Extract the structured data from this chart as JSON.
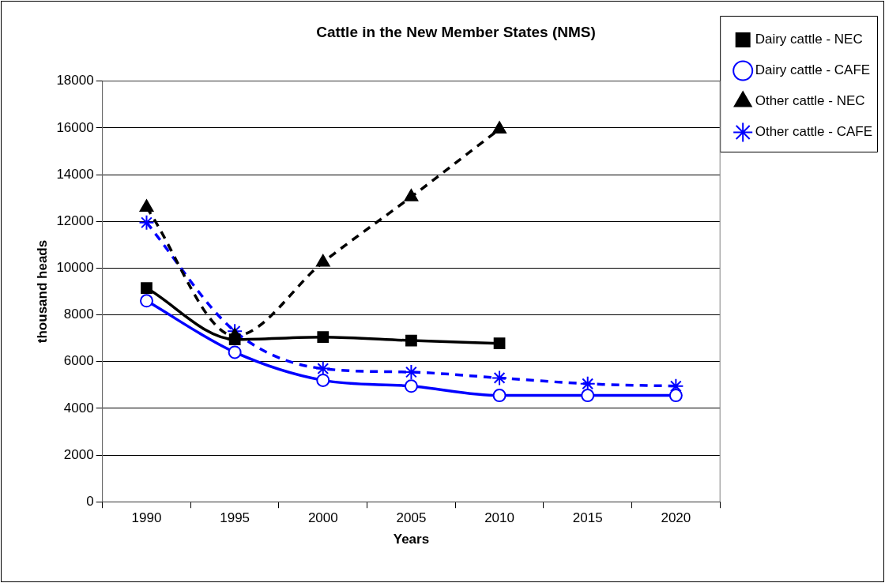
{
  "chart_data": {
    "type": "line",
    "title": "Cattle in the New Member States (NMS)",
    "xlabel": "Years",
    "ylabel": "thousand heads",
    "categories": [
      "1990",
      "1995",
      "2000",
      "2005",
      "2010",
      "2015",
      "2020"
    ],
    "series": [
      {
        "name": "Dairy cattle - NEC",
        "color": "#000000",
        "marker": "square",
        "line_style": "solid",
        "values": [
          9150,
          6950,
          7050,
          6900,
          6780,
          null,
          null
        ]
      },
      {
        "name": "Dairy cattle - CAFE",
        "color": "#0000ff",
        "marker": "circle",
        "line_style": "solid",
        "values": [
          8600,
          6400,
          5200,
          4950,
          4550,
          4550,
          4550
        ]
      },
      {
        "name": "Other cattle - NEC",
        "color": "#000000",
        "marker": "triangle",
        "line_style": "dashed",
        "values": [
          12600,
          7100,
          10250,
          13050,
          15950,
          null,
          null
        ]
      },
      {
        "name": "Other cattle - CAFE",
        "color": "#0000ff",
        "marker": "cross",
        "line_style": "dashed",
        "values": [
          11950,
          7300,
          5700,
          5550,
          5300,
          5050,
          4950
        ]
      }
    ],
    "ylim": [
      0,
      18000
    ],
    "yticks": [
      0,
      2000,
      4000,
      6000,
      8000,
      10000,
      12000,
      14000,
      16000,
      18000
    ],
    "grid": "y",
    "legend": "top right"
  }
}
